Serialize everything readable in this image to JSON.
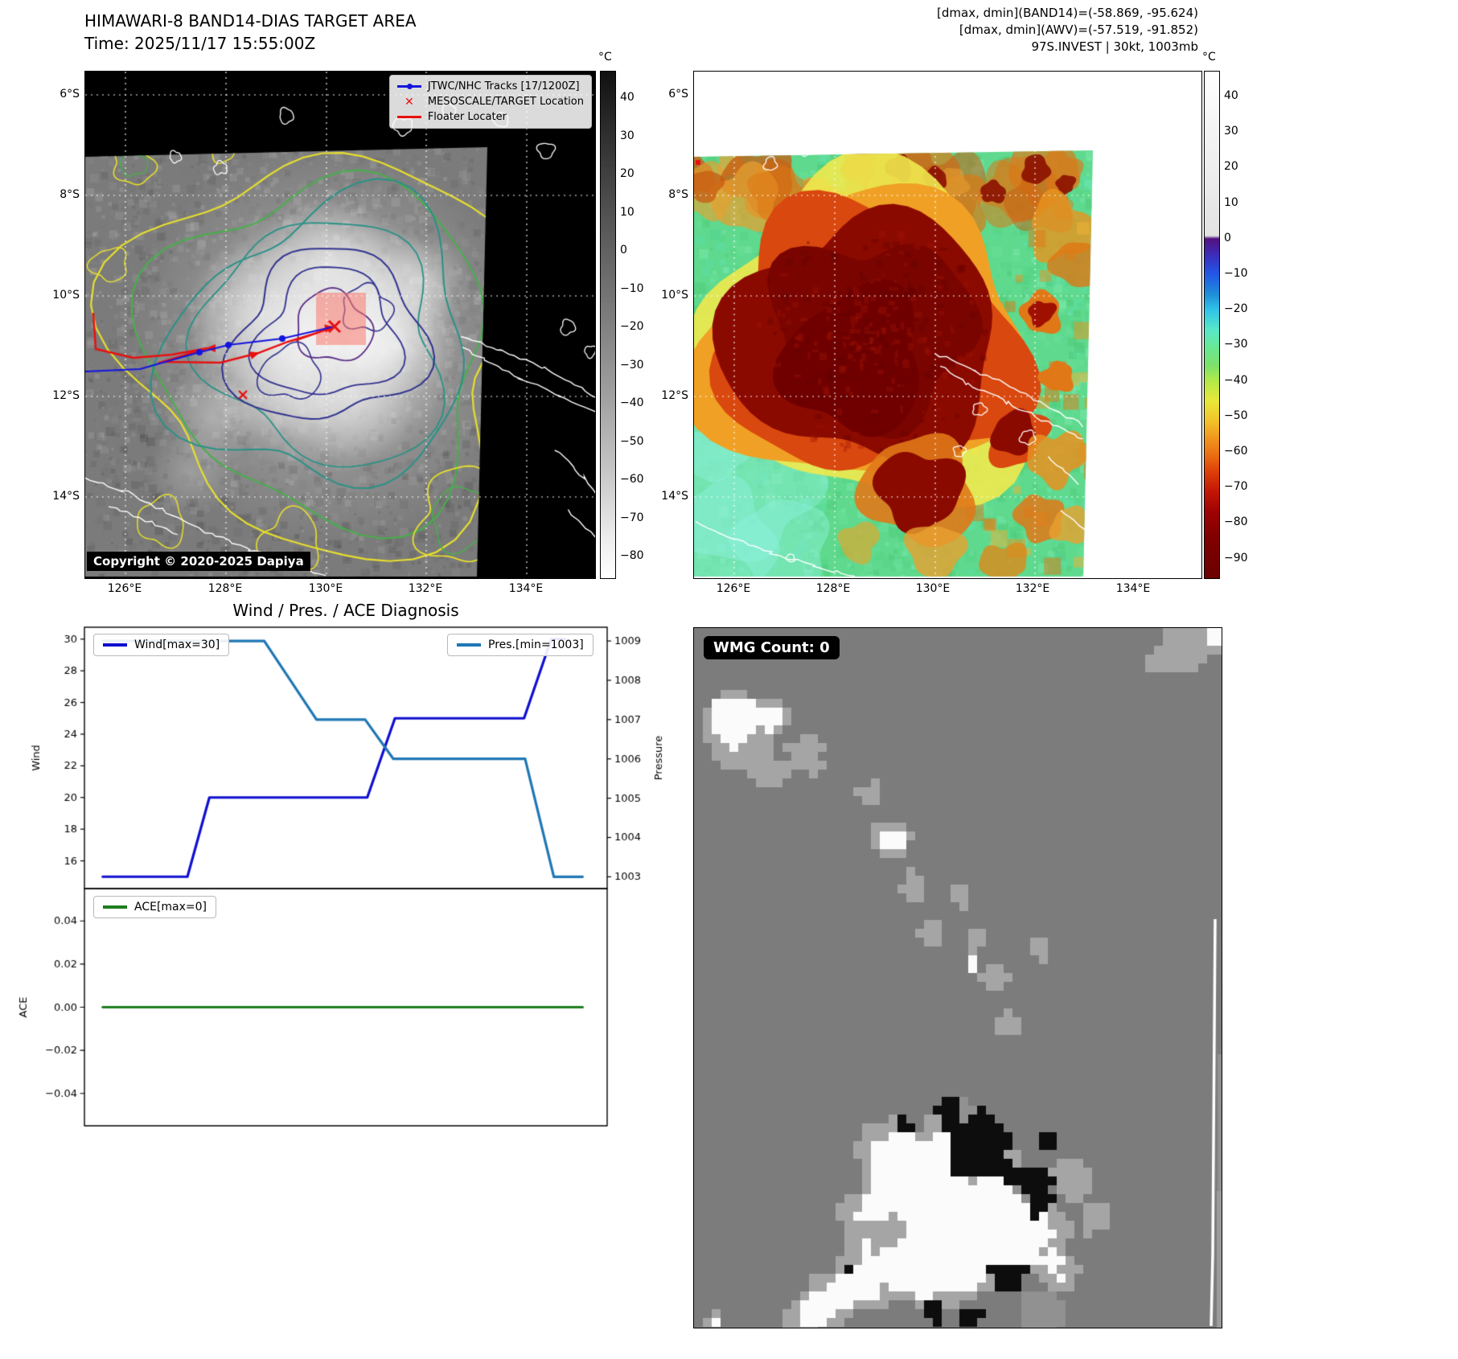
{
  "band14": {
    "title": "HIMAWARI-8 BAND14-DIAS TARGET AREA",
    "time_line": "Time: 2025/11/17 15:55:00Z",
    "lat_ticks": [
      "6°S",
      "8°S",
      "10°S",
      "12°S",
      "14°S"
    ],
    "lon_ticks": [
      "126°E",
      "128°E",
      "130°E",
      "132°E",
      "134°E"
    ],
    "legend": {
      "items": [
        {
          "label": "JTWC/NHC Tracks [17/1200Z]",
          "marker": "blue-line-dot",
          "color": "#1414e0"
        },
        {
          "label": "MESOSCALE/TARGET Location",
          "marker": "red-x",
          "color": "#e81010"
        },
        {
          "label": "Floater Locater",
          "marker": "red-line",
          "color": "#e81010"
        }
      ]
    },
    "copyright": "Copyright © 2020-2025 Dapiya",
    "colorbar": {
      "unit": "°C",
      "ticks": [
        "40",
        "30",
        "20",
        "10",
        "0",
        "−10",
        "−20",
        "−30",
        "−40",
        "−50",
        "−60",
        "−70",
        "−80"
      ]
    }
  },
  "awv": {
    "annotations": [
      "[dmax, dmin](BAND14)=(-58.869, -95.624)",
      "[dmax, dmin](AWV)=(-57.519, -91.852)",
      "97S.INVEST | 30kt, 1003mb"
    ],
    "lat_ticks": [
      "6°S",
      "8°S",
      "10°S",
      "12°S",
      "14°S"
    ],
    "lon_ticks": [
      "126°E",
      "128°E",
      "130°E",
      "132°E",
      "134°E"
    ],
    "colorbar": {
      "unit": "°C",
      "ticks": [
        "40",
        "30",
        "20",
        "10",
        "0",
        "−10",
        "−20",
        "−30",
        "−40",
        "−50",
        "−60",
        "−70",
        "−80",
        "−90"
      ]
    }
  },
  "wmg": {
    "count_label": "WMG Count: 0"
  },
  "chart_data": [
    {
      "type": "line",
      "title": "Wind / Pres. / ACE Diagnosis",
      "grid": false,
      "axes": {
        "left": {
          "label": "Wind",
          "ticks": [
            16,
            18,
            20,
            22,
            24,
            26,
            28,
            30
          ],
          "lim": [
            14.25,
            30.75
          ],
          "decimals": 0
        },
        "right": {
          "label": "Pressure",
          "ticks": [
            1003,
            1004,
            1005,
            1006,
            1007,
            1008,
            1009
          ],
          "lim": [
            1002.7,
            1009.35
          ],
          "decimals": 0
        }
      },
      "series": [
        {
          "name": "Wind[max=30]",
          "axis": "left",
          "color": "#0f0fd0",
          "legend_pos": "upper-left",
          "x": [
            0.035,
            0.197,
            0.239,
            0.541,
            0.594,
            0.841,
            0.893,
            0.92
          ],
          "y": [
            15,
            15,
            20,
            20,
            25,
            25,
            30,
            30
          ]
        },
        {
          "name": "Pres.[min=1003]",
          "axis": "right",
          "color": "#1f77b4",
          "legend_pos": "upper-right",
          "x": [
            0.035,
            0.344,
            0.444,
            0.537,
            0.591,
            0.843,
            0.898,
            0.953
          ],
          "y": [
            1009,
            1009,
            1007,
            1007,
            1006,
            1006,
            1003,
            1003
          ]
        }
      ]
    },
    {
      "type": "line",
      "title": "",
      "grid": false,
      "axes": {
        "left": {
          "label": "ACE",
          "ticks": [
            -0.04,
            -0.02,
            0,
            0.02,
            0.04
          ],
          "lim": [
            -0.055,
            0.055
          ],
          "decimals": 2
        }
      },
      "series": [
        {
          "name": "ACE[max=0]",
          "axis": "left",
          "color": "#1e7d1e",
          "legend_pos": "upper-left",
          "x": [
            0.035,
            0.953
          ],
          "y": [
            0,
            0
          ]
        }
      ]
    }
  ]
}
